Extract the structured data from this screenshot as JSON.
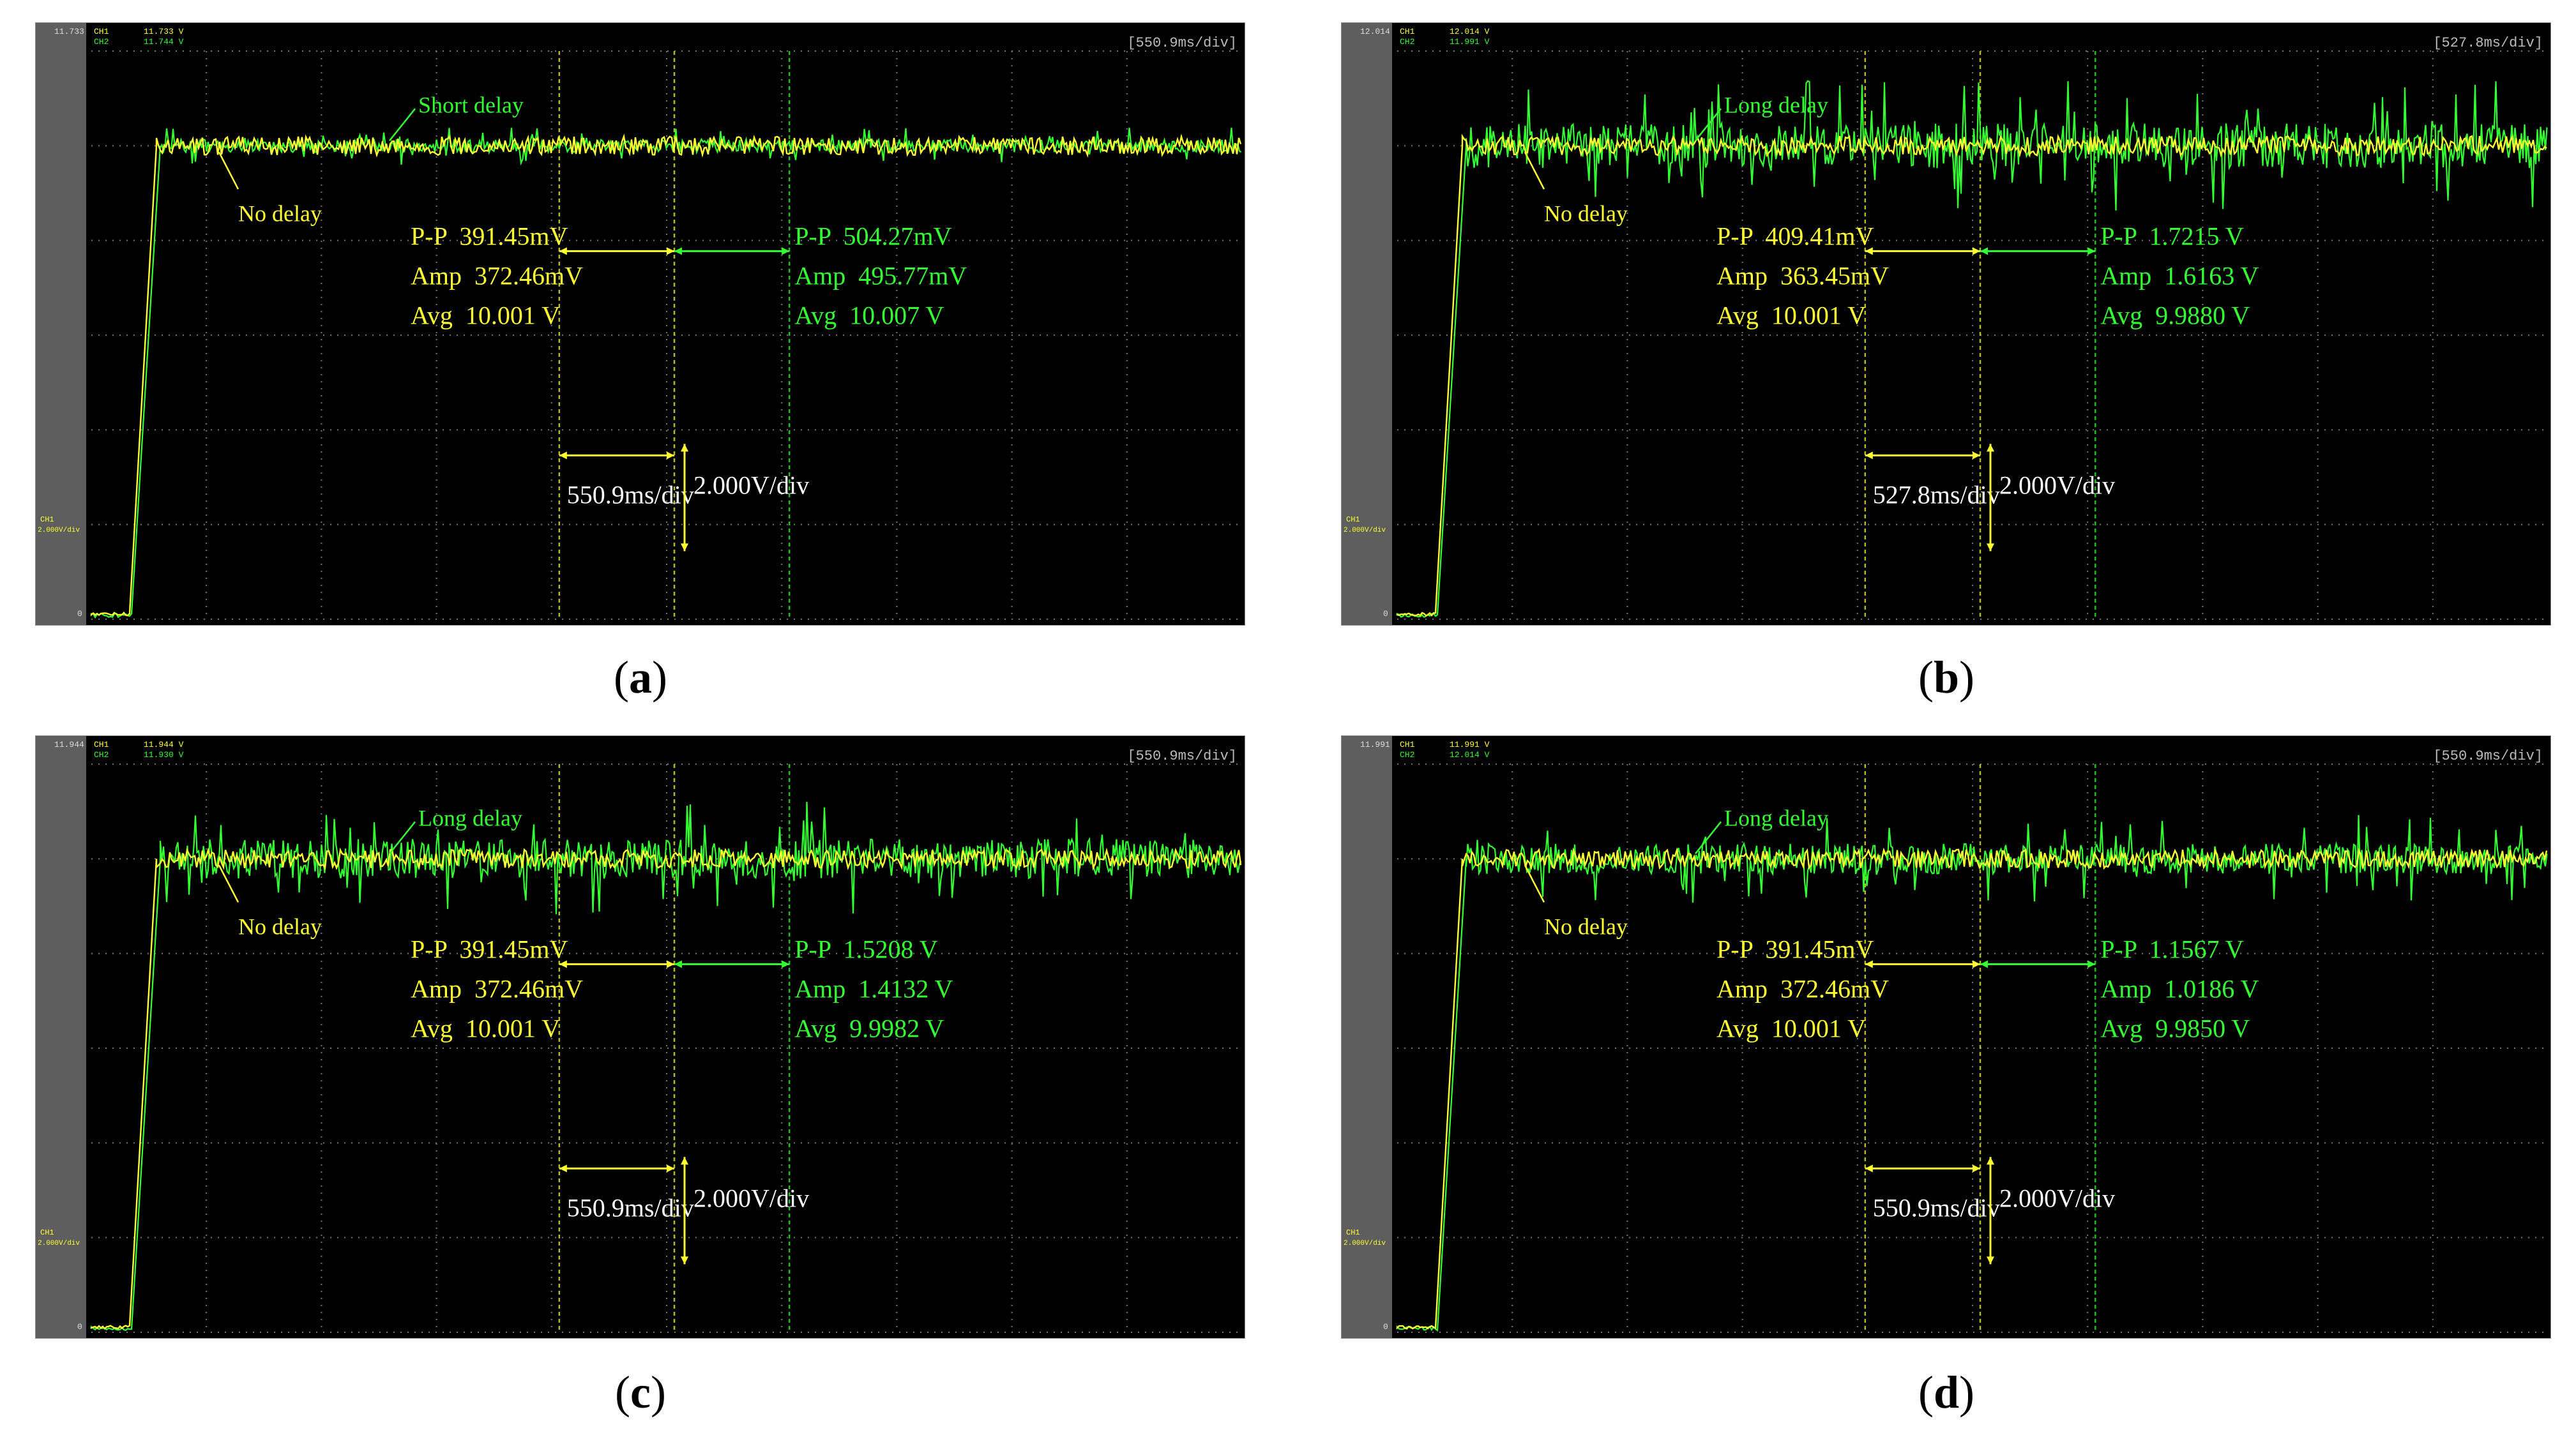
{
  "chart_data": [
    {
      "type": "line",
      "panel": "a",
      "caption": "a",
      "timebase_label": "[550.9ms/div]",
      "top_voltage": "11.733",
      "ch1_label": "CH1",
      "ch2_label": "CH2",
      "ch1_readout": "11.733 V",
      "ch2_readout": "11.744 V",
      "ch_marker": "CH1",
      "vdiv_marker": "2.000V/div",
      "zero_label": "0",
      "long_label": "Short delay",
      "no_delay_label": "No delay",
      "meas_yellow": [
        "P-P  391.45mV",
        "Amp  372.46mV",
        "Avg  10.001 V"
      ],
      "meas_green": [
        "P-P  504.27mV",
        "Amp  495.77mV",
        "Avg  10.007 V"
      ],
      "time_div": "550.9ms/div",
      "volt_div": "2.000V/div",
      "ylim": [
        0,
        12
      ],
      "settle_level": 10.0,
      "series": [
        {
          "name": "No delay",
          "color": "#ffff33",
          "noise_pp": 0.39
        },
        {
          "name": "Short delay",
          "color": "#33ff33",
          "noise_pp": 0.5
        }
      ]
    },
    {
      "type": "line",
      "panel": "b",
      "caption": "b",
      "timebase_label": "[527.8ms/div]",
      "top_voltage": "12.014",
      "ch1_label": "CH1",
      "ch2_label": "CH2",
      "ch1_readout": "12.014 V",
      "ch2_readout": "11.991 V",
      "ch_marker": "CH1",
      "vdiv_marker": "2.000V/div",
      "zero_label": "0",
      "long_label": "Long delay",
      "no_delay_label": "No delay",
      "meas_yellow": [
        "P-P  409.41mV",
        "Amp  363.45mV",
        "Avg  10.001 V"
      ],
      "meas_green": [
        "P-P  1.7215 V",
        "Amp  1.6163 V",
        "Avg  9.9880 V"
      ],
      "time_div": "527.8ms/div",
      "volt_div": "2.000V/div",
      "ylim": [
        0,
        12
      ],
      "settle_level": 10.0,
      "series": [
        {
          "name": "No delay",
          "color": "#ffff33",
          "noise_pp": 0.41
        },
        {
          "name": "Long delay",
          "color": "#33ff33",
          "noise_pp": 1.72
        }
      ]
    },
    {
      "type": "line",
      "panel": "c",
      "caption": "c",
      "timebase_label": "[550.9ms/div]",
      "top_voltage": "11.944",
      "ch1_label": "CH1",
      "ch2_label": "CH2",
      "ch1_readout": "11.944 V",
      "ch2_readout": "11.930 V",
      "ch_marker": "CH1",
      "vdiv_marker": "2.000V/div",
      "zero_label": "0",
      "long_label": "Long delay",
      "no_delay_label": "No delay",
      "meas_yellow": [
        "P-P  391.45mV",
        "Amp  372.46mV",
        "Avg  10.001 V"
      ],
      "meas_green": [
        "P-P  1.5208 V",
        "Amp  1.4132 V",
        "Avg  9.9982 V"
      ],
      "time_div": "550.9ms/div",
      "volt_div": "2.000V/div",
      "ylim": [
        0,
        12
      ],
      "settle_level": 10.0,
      "series": [
        {
          "name": "No delay",
          "color": "#ffff33",
          "noise_pp": 0.39
        },
        {
          "name": "Long delay",
          "color": "#33ff33",
          "noise_pp": 1.52
        }
      ]
    },
    {
      "type": "line",
      "panel": "d",
      "caption": "d",
      "timebase_label": "[550.9ms/div]",
      "top_voltage": "11.991",
      "ch1_label": "CH1",
      "ch2_label": "CH2",
      "ch1_readout": "11.991 V",
      "ch2_readout": "12.014 V",
      "ch_marker": "CH1",
      "vdiv_marker": "2.000V/div",
      "zero_label": "0",
      "long_label": "Long delay",
      "no_delay_label": "No delay",
      "meas_yellow": [
        "P-P  391.45mV",
        "Amp  372.46mV",
        "Avg  10.001 V"
      ],
      "meas_green": [
        "P-P  1.1567 V",
        "Amp  1.0186 V",
        "Avg  9.9850 V"
      ],
      "time_div": "550.9ms/div",
      "volt_div": "2.000V/div",
      "ylim": [
        0,
        12
      ],
      "settle_level": 10.0,
      "series": [
        {
          "name": "No delay",
          "color": "#ffff33",
          "noise_pp": 0.39
        },
        {
          "name": "Long delay",
          "color": "#33ff33",
          "noise_pp": 1.16
        }
      ]
    }
  ]
}
